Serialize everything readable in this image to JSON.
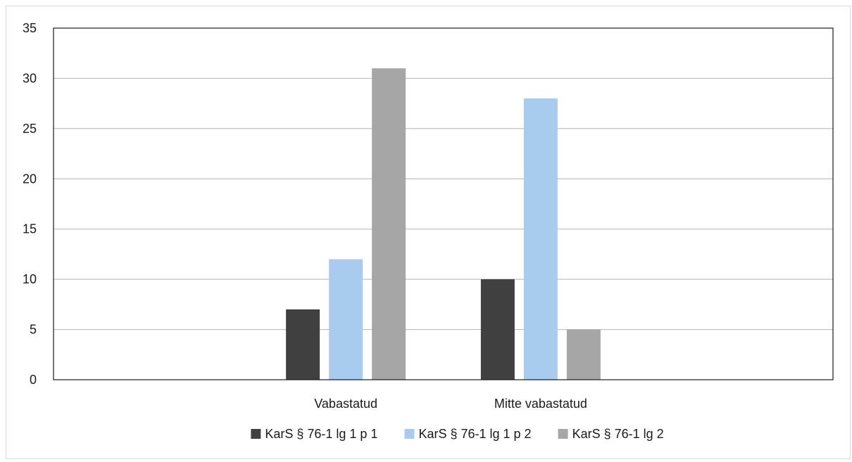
{
  "chart_data": {
    "type": "bar",
    "title": "",
    "xlabel": "",
    "ylabel": "",
    "categories": [
      "",
      "Vabastatud",
      "Mitte vabastatud",
      ""
    ],
    "series": [
      {
        "name": "KarS § 76-1 lg 1 p 1",
        "color": "#404040",
        "values": [
          null,
          7,
          10,
          null
        ]
      },
      {
        "name": "KarS § 76-1 lg 1 p 2",
        "color": "#a9cbed",
        "values": [
          null,
          12,
          28,
          null
        ]
      },
      {
        "name": "KarS § 76-1 lg 2",
        "color": "#a6a6a6",
        "values": [
          null,
          31,
          5,
          null
        ]
      }
    ],
    "ylim": [
      0,
      35
    ],
    "yticks": [
      0,
      5,
      10,
      15,
      20,
      25,
      30,
      35
    ],
    "grid": true,
    "legend": "bottom"
  }
}
